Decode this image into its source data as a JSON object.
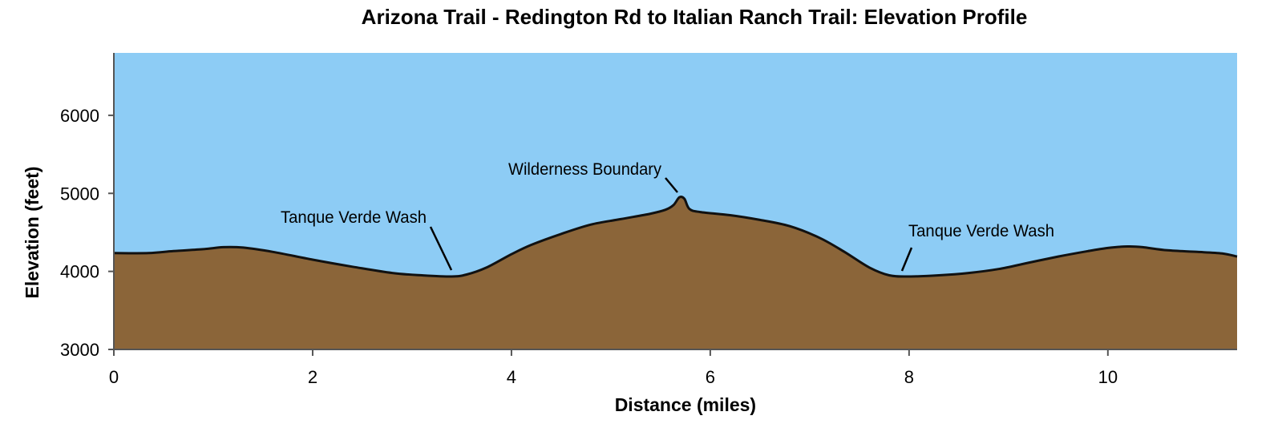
{
  "chart_data": {
    "type": "area",
    "title": "Arizona Trail - Redington Rd to Italian Ranch Trail: Elevation Profile",
    "xlabel": "Distance (miles)",
    "ylabel": "Elevation (feet)",
    "xlim": [
      0,
      11.3
    ],
    "ylim": [
      3000,
      6800
    ],
    "x_ticks": [
      0,
      2,
      4,
      6,
      8,
      10
    ],
    "y_ticks": [
      3000,
      4000,
      5000,
      6000
    ],
    "grid": false,
    "legend": "none",
    "colors": {
      "sky": "#8DCCF5",
      "terrain": "#8B6539",
      "outline": "#111111",
      "axis": "#555555"
    },
    "series": [
      {
        "x": [
          0,
          0.35,
          0.6,
          0.9,
          1.1,
          1.3,
          1.6,
          2.0,
          2.4,
          2.8,
          3.1,
          3.4,
          3.55,
          3.75,
          4.0,
          4.2,
          4.5,
          4.8,
          5.1,
          5.4,
          5.55,
          5.63,
          5.69,
          5.74,
          5.79,
          5.9,
          6.2,
          6.5,
          6.8,
          7.1,
          7.35,
          7.6,
          7.8,
          8.0,
          8.3,
          8.6,
          8.9,
          9.2,
          9.5,
          9.8,
          10.0,
          10.2,
          10.35,
          10.6,
          10.9,
          11.15,
          11.3
        ],
        "values": [
          4235,
          4235,
          4260,
          4285,
          4310,
          4305,
          4250,
          4150,
          4060,
          3980,
          3950,
          3935,
          3960,
          4050,
          4220,
          4340,
          4480,
          4600,
          4670,
          4740,
          4790,
          4850,
          4950,
          4930,
          4800,
          4760,
          4720,
          4660,
          4580,
          4430,
          4250,
          4050,
          3950,
          3935,
          3950,
          3980,
          4030,
          4110,
          4190,
          4260,
          4300,
          4320,
          4310,
          4270,
          4250,
          4230,
          4190
        ]
      }
    ],
    "annotations": [
      {
        "text": "Tanque Verde Wash",
        "x": 3.4,
        "y": 3935
      },
      {
        "text": "Wilderness Boundary",
        "x": 5.69,
        "y": 4950
      },
      {
        "text": "Tanque Verde Wash",
        "x": 7.95,
        "y": 3935
      }
    ]
  }
}
